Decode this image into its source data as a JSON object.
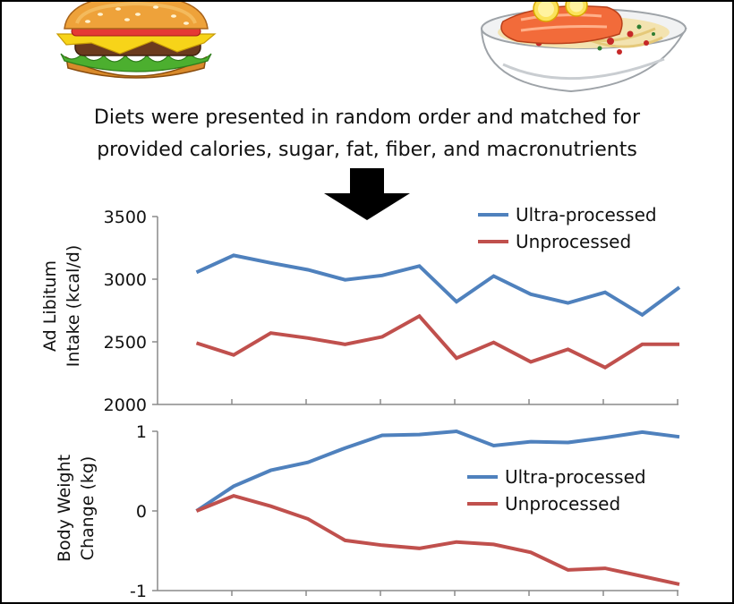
{
  "caption": {
    "line1": "Diets were presented in random order and matched for",
    "line2": "provided calories, sugar, fat, fiber, and macronutrients"
  },
  "icons": {
    "left": "burger-icon",
    "right": "salmon-pasta-bowl-icon",
    "arrow": "down-arrow-icon"
  },
  "colors": {
    "ultra_processed": "#4f81bd",
    "unprocessed": "#c0504d"
  },
  "chart_data": [
    {
      "type": "line",
      "title": "",
      "ylabel_line1": "Ad Libitum",
      "ylabel_line2": "Intake (kcal/d)",
      "xlabel": "",
      "ylim": [
        2000,
        3500
      ],
      "yticks": [
        2000,
        2500,
        3000,
        3500
      ],
      "x": [
        1,
        2,
        3,
        4,
        5,
        6,
        7,
        8,
        9,
        10,
        11,
        12,
        13,
        14
      ],
      "legend_position": "top-right",
      "grid": false,
      "series": [
        {
          "name": "Ultra-processed",
          "color": "#4f81bd",
          "values": [
            3055,
            3190,
            3130,
            3075,
            2995,
            3030,
            3105,
            2820,
            3025,
            2880,
            2810,
            2895,
            2715,
            2935
          ]
        },
        {
          "name": "Unprocessed",
          "color": "#c0504d",
          "values": [
            2490,
            2395,
            2570,
            2530,
            2480,
            2540,
            2705,
            2370,
            2495,
            2340,
            2440,
            2295,
            2480,
            2480
          ]
        }
      ]
    },
    {
      "type": "line",
      "title": "",
      "ylabel_line1": "Body Weight",
      "ylabel_line2": "Change (kg)",
      "xlabel": "",
      "ylim": [
        -1,
        1
      ],
      "yticks": [
        -1,
        0,
        1
      ],
      "x": [
        0,
        1,
        2,
        3,
        4,
        5,
        6,
        7,
        8,
        9,
        10,
        11,
        12,
        13
      ],
      "legend_position": "center-right",
      "grid": false,
      "series": [
        {
          "name": "Ultra-processed",
          "color": "#4f81bd",
          "values": [
            0,
            0.31,
            0.51,
            0.61,
            0.79,
            0.95,
            0.96,
            1.0,
            0.82,
            0.87,
            0.86,
            0.92,
            0.99,
            0.93
          ]
        },
        {
          "name": "Unprocessed",
          "color": "#c0504d",
          "values": [
            0,
            0.19,
            0.06,
            -0.1,
            -0.37,
            -0.43,
            -0.47,
            -0.39,
            -0.42,
            -0.52,
            -0.74,
            -0.72,
            -0.82,
            -0.92
          ]
        }
      ]
    }
  ]
}
